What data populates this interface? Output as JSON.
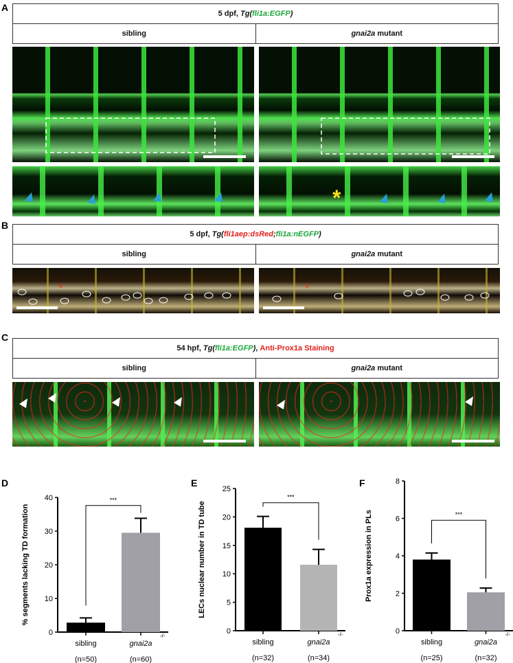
{
  "panels": {
    "A": {
      "label": "A",
      "title": {
        "prefix": "5 dpf, ",
        "tg": "Tg(",
        "construct": "fli1a:EGFP",
        "close": ")"
      },
      "col_left": "sibling",
      "col_right_gene": "gnai2a",
      "col_right_suffix": " mutant",
      "annotation": "*"
    },
    "B": {
      "label": "B",
      "title": {
        "prefix": "5 dpf, ",
        "tg": "Tg(",
        "construct1": "fli1aep:dsRed",
        "sep": ";",
        "construct2": "fli1a:nEGFP",
        "close": ")"
      },
      "col_left": "sibling",
      "col_right_gene": "gnai2a",
      "col_right_suffix": " mutant"
    },
    "C": {
      "label": "C",
      "title": {
        "prefix": "54 hpf, ",
        "tg": "Tg(",
        "construct": "fli1a:EGFP",
        "close": ")",
        "comma": ", ",
        "stain": "Anti-Prox1a Staining"
      },
      "col_left": "sibling",
      "col_right_gene": "gnai2a",
      "col_right_suffix": " mutant"
    }
  },
  "colors": {
    "green": "#1aa63a",
    "red": "#e0201c",
    "arrowhead_blue": "#2a9fd6",
    "asterisk": "#f5e21a"
  },
  "chart_data": [
    {
      "panel": "D",
      "type": "bar",
      "ylabel": "% segments lacking TD formation",
      "ylim": [
        0,
        40
      ],
      "yticks": [
        0,
        10,
        20,
        30,
        40
      ],
      "categories": [
        {
          "name": "sibling",
          "sup": "",
          "n": "(n=50)"
        },
        {
          "name": "gnai2a",
          "sup": "-/-",
          "n": "(n=60)"
        }
      ],
      "values": [
        2.8,
        29.5
      ],
      "errors": [
        4.2,
        33.8
      ],
      "bar_colors": [
        "#000000",
        "#a0a0a6"
      ],
      "significance": "***"
    },
    {
      "panel": "E",
      "type": "bar",
      "ylabel": "LECs nuclear number in TD tube",
      "ylim": [
        0,
        25
      ],
      "yticks": [
        0,
        5,
        10,
        15,
        20,
        25
      ],
      "categories": [
        {
          "name": "sibling",
          "sup": "",
          "n": "(n=32)"
        },
        {
          "name": "gnai2a",
          "sup": "-/-",
          "n": "(n=34)"
        }
      ],
      "values": [
        18.1,
        11.6
      ],
      "errors": [
        20.1,
        14.3
      ],
      "bar_colors": [
        "#000000",
        "#b4b4b4"
      ],
      "significance": "***"
    },
    {
      "panel": "F",
      "type": "bar",
      "ylabel": "Prox1a expression in PLs",
      "ylim": [
        0,
        8
      ],
      "yticks": [
        0,
        2,
        4,
        6,
        8
      ],
      "categories": [
        {
          "name": "sibling",
          "sup": "",
          "n": "(n=25)"
        },
        {
          "name": "gnai2a",
          "sup": "-/-",
          "n": "(n=32)"
        }
      ],
      "values": [
        3.8,
        2.05
      ],
      "errors": [
        4.15,
        2.28
      ],
      "bar_colors": [
        "#000000",
        "#a0a0a6"
      ],
      "significance": "***"
    }
  ]
}
